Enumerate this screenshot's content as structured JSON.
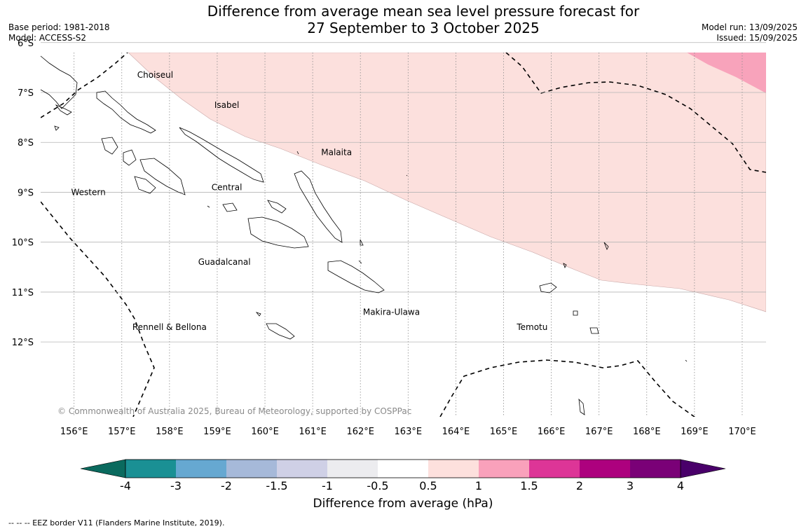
{
  "header": {
    "title_line1": "Difference from average mean sea level pressure forecast for",
    "title_line2": "27 September to 3 October 2025",
    "base_period": "Base period: 1981-2018",
    "model": "Model: ACCESS-S2",
    "model_run": "Model run: 13/09/2025",
    "issued": "Issued: 15/09/2025"
  },
  "map": {
    "lon_range": [
      155.3,
      170.5
    ],
    "lat_range": [
      -6.2,
      -13.5
    ],
    "lon_ticks": [
      {
        "value": 156,
        "label": "156°E"
      },
      {
        "value": 157,
        "label": "157°E"
      },
      {
        "value": 158,
        "label": "158°E"
      },
      {
        "value": 159,
        "label": "159°E"
      },
      {
        "value": 160,
        "label": "160°E"
      },
      {
        "value": 161,
        "label": "161°E"
      },
      {
        "value": 162,
        "label": "162°E"
      },
      {
        "value": 163,
        "label": "163°E"
      },
      {
        "value": 164,
        "label": "164°E"
      },
      {
        "value": 165,
        "label": "165°E"
      },
      {
        "value": 166,
        "label": "166°E"
      },
      {
        "value": 167,
        "label": "167°E"
      },
      {
        "value": 168,
        "label": "168°E"
      },
      {
        "value": 169,
        "label": "169°E"
      },
      {
        "value": 170,
        "label": "170°E"
      }
    ],
    "lat_ticks": [
      {
        "value": -6,
        "label": "6°S"
      },
      {
        "value": -7,
        "label": "7°S"
      },
      {
        "value": -8,
        "label": "8°S"
      },
      {
        "value": -9,
        "label": "9°S"
      },
      {
        "value": -10,
        "label": "10°S"
      },
      {
        "value": -11,
        "label": "11°S"
      },
      {
        "value": -12,
        "label": "12°S"
      }
    ],
    "province_labels": [
      {
        "name": "Choiseul",
        "lon": 157.7,
        "lat": -6.65
      },
      {
        "name": "Isabel",
        "lon": 159.2,
        "lat": -7.25
      },
      {
        "name": "Malaita",
        "lon": 161.5,
        "lat": -8.2
      },
      {
        "name": "Western",
        "lon": 156.3,
        "lat": -9.0
      },
      {
        "name": "Central",
        "lon": 159.2,
        "lat": -8.9
      },
      {
        "name": "Guadalcanal",
        "lon": 159.15,
        "lat": -10.4
      },
      {
        "name": "Makira-Ulawa",
        "lon": 162.65,
        "lat": -11.4
      },
      {
        "name": "Rennell & Bellona",
        "lon": 158.0,
        "lat": -11.7
      },
      {
        "name": "Temotu",
        "lon": 165.6,
        "lat": -11.7
      }
    ],
    "copyright": "© Commonwealth of Australia 2025, Bureau of Meteorology, supported by COSPPac"
  },
  "anomaly_regions": [
    {
      "range": "0.5 to 1",
      "color": "#fce0dd"
    },
    {
      "range": "1 to 1.5",
      "color": "#f8a3bb"
    }
  ],
  "colorbar": {
    "title": "Difference from average (hPa)",
    "labels": [
      "-4",
      "-3",
      "-2",
      "-1.5",
      "-1",
      "-0.5",
      "0.5",
      "1",
      "1.5",
      "2",
      "3",
      "4"
    ],
    "colors": [
      "#1a9094",
      "#66a8d1",
      "#a6b9d9",
      "#cfd0e6",
      "#ececef",
      "#ffffff",
      "#fde0dd",
      "#f9a1bb",
      "#dd3597",
      "#ad017e",
      "#7a0177"
    ],
    "extend_low_color": "#0a6a5e",
    "extend_high_color": "#49006a"
  },
  "footnote": "--  --  -- EEZ border V11 (Flanders Marine Institute, 2019)."
}
